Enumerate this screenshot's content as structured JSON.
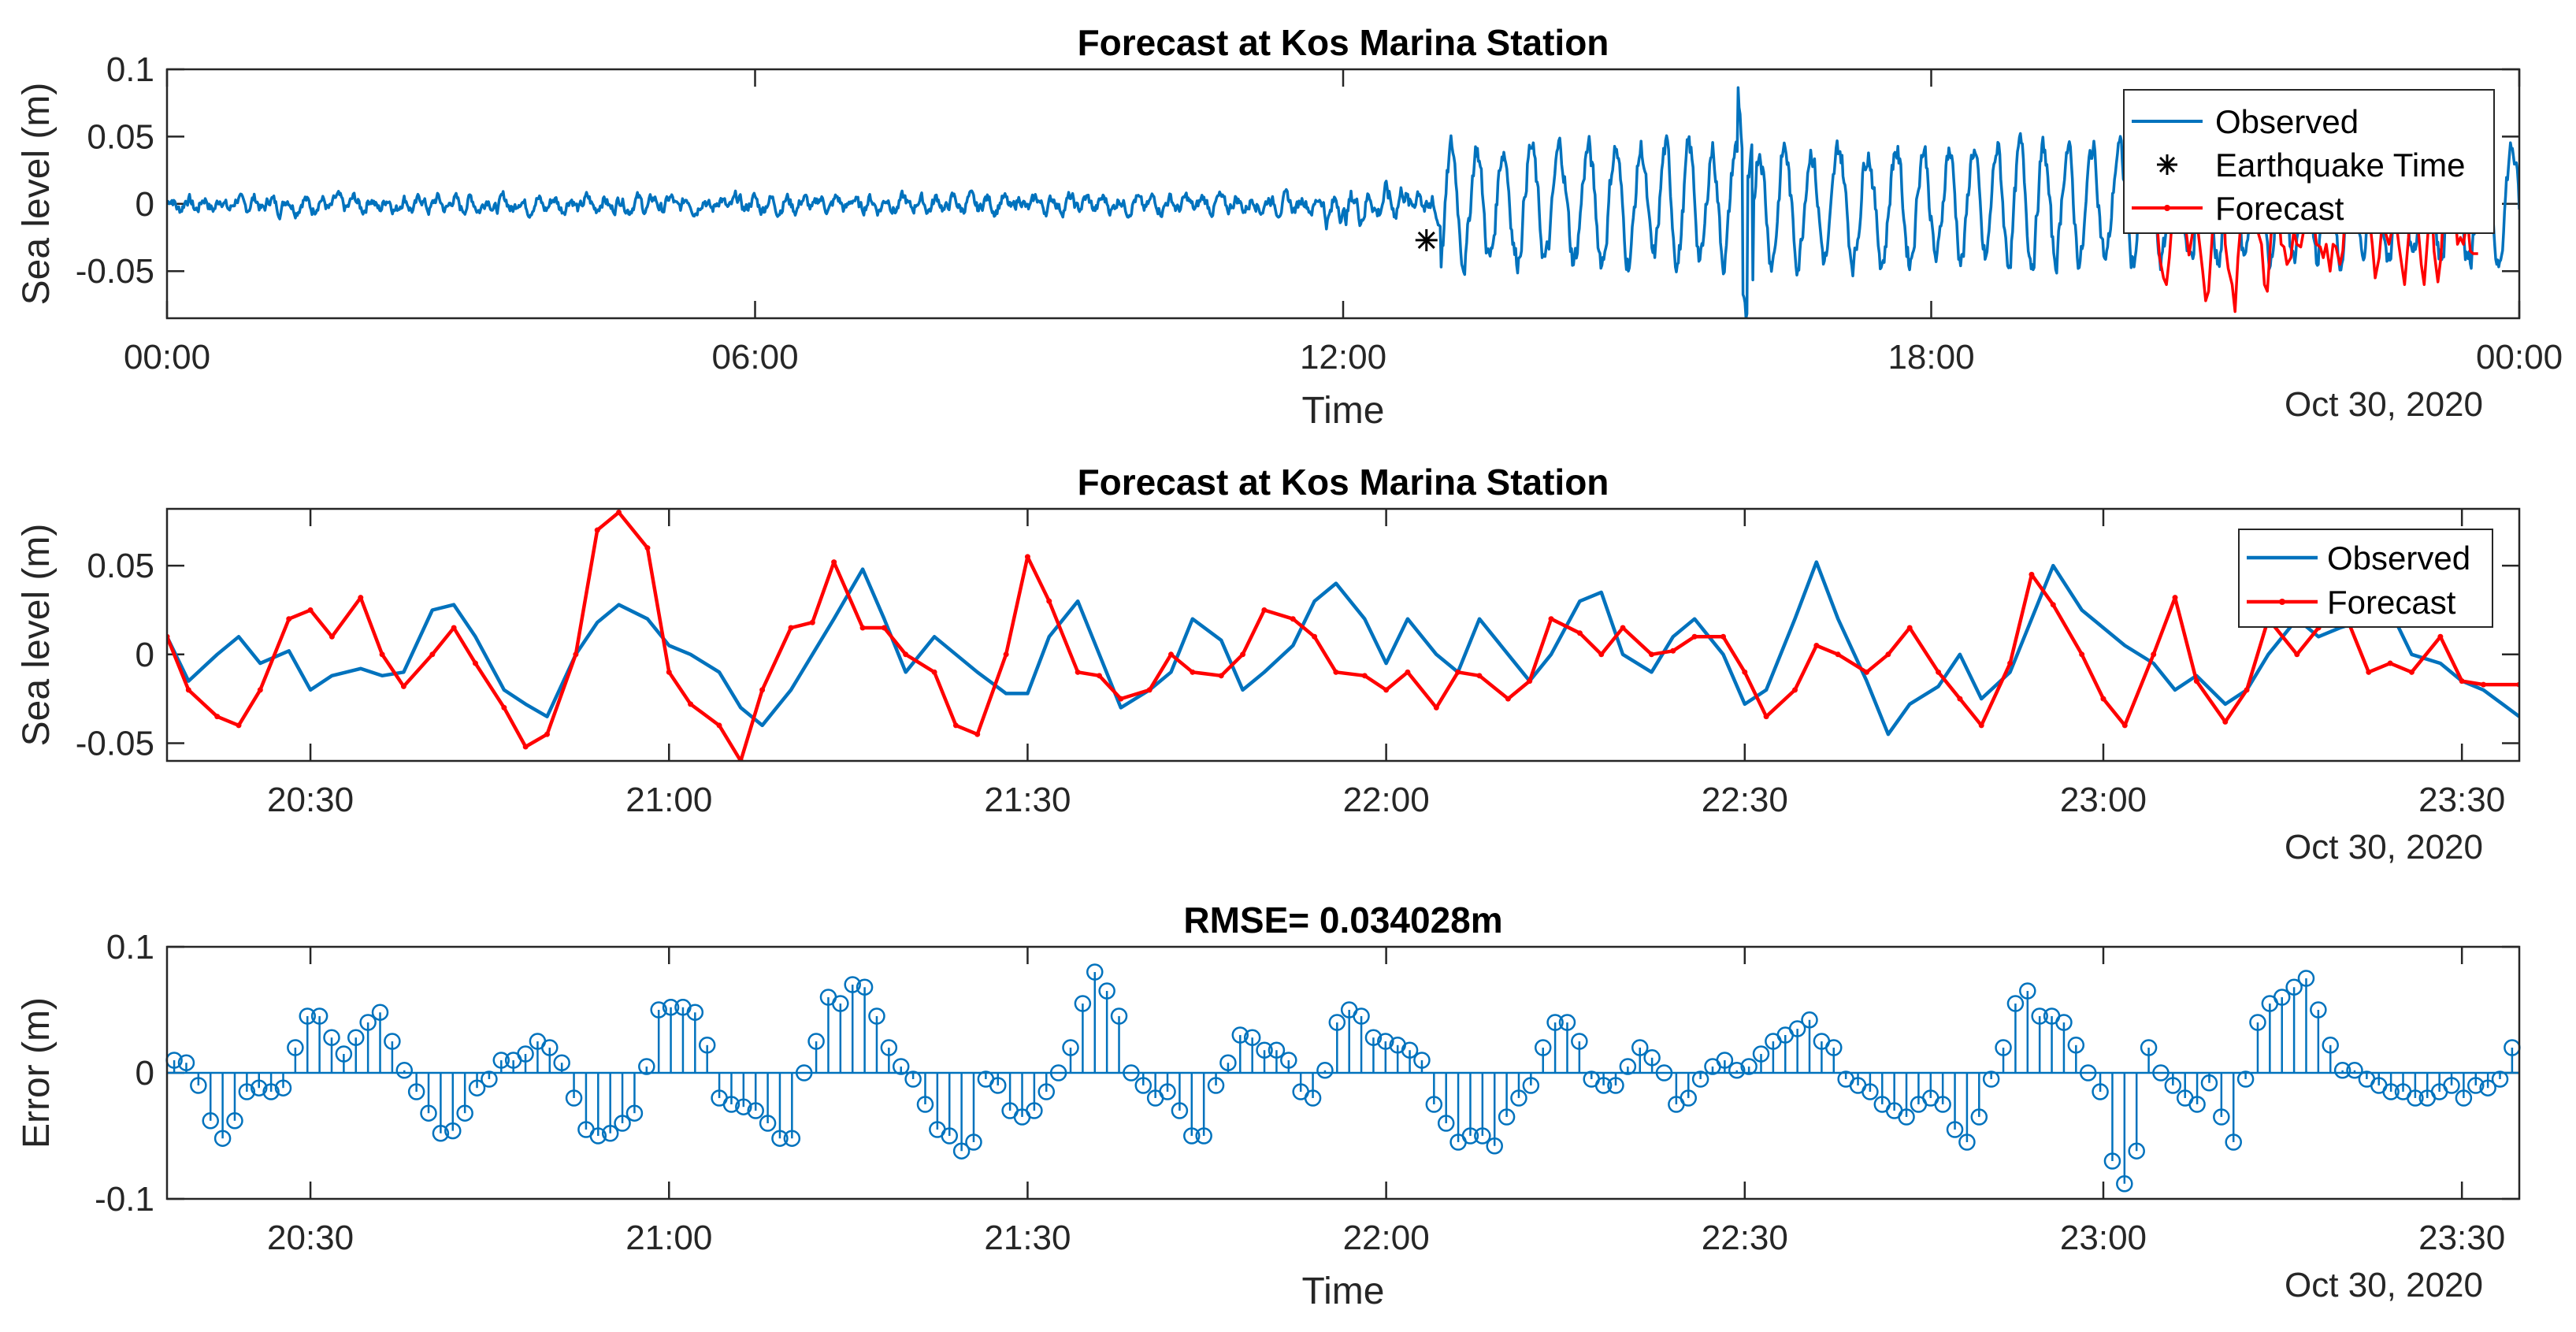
{
  "chart_data": [
    {
      "type": "line",
      "title": "Forecast at Kos Marina Station",
      "xlabel": "Time",
      "ylabel": "Sea level (m)",
      "date_label": "Oct 30, 2020",
      "xlim_hours": [
        0,
        24
      ],
      "ylim": [
        -0.085,
        0.1
      ],
      "x_ticks": [
        {
          "h": 0,
          "label": "00:00"
        },
        {
          "h": 6,
          "label": "06:00"
        },
        {
          "h": 12,
          "label": "12:00"
        },
        {
          "h": 18,
          "label": "18:00"
        },
        {
          "h": 24,
          "label": "00:00"
        }
      ],
      "y_ticks": [
        {
          "v": 0.1,
          "label": "0.1"
        },
        {
          "v": 0.05,
          "label": "0.05"
        },
        {
          "v": 0,
          "label": "0"
        },
        {
          "v": -0.05,
          "label": "-0.05"
        }
      ],
      "legend": [
        "Observed",
        "Earthquake Time",
        "Forecast"
      ],
      "legend_position": "top-right",
      "earthquake_marker": {
        "h": 12.85,
        "v": -0.027
      },
      "observed_envelope_approx": [
        {
          "h_from": 0,
          "h_to": 11.8,
          "amplitude": 0.012
        },
        {
          "h_from": 11.8,
          "h_to": 13.0,
          "amplitude": 0.02
        },
        {
          "h_from": 13.0,
          "h_to": 24,
          "amplitude": 0.055
        }
      ],
      "forecast_hours_range": [
        20.3,
        23.58
      ],
      "series": [
        {
          "name": "Observed",
          "color": "#0072BD",
          "note": "high-frequency record, approximated"
        },
        {
          "name": "Forecast",
          "color": "#FF0000",
          "note": "covers the final ~3.3 h"
        }
      ]
    },
    {
      "type": "line",
      "title": "Forecast at Kos Marina Station",
      "xlabel": "",
      "ylabel": "Sea level (m)",
      "date_label": "Oct 30, 2020",
      "xlim_hours": [
        20.3,
        23.58
      ],
      "ylim": [
        -0.06,
        0.082
      ],
      "x_ticks": [
        {
          "h": 20.5,
          "label": "20:30"
        },
        {
          "h": 21.0,
          "label": "21:00"
        },
        {
          "h": 21.5,
          "label": "21:30"
        },
        {
          "h": 22.0,
          "label": "22:00"
        },
        {
          "h": 22.5,
          "label": "22:30"
        },
        {
          "h": 23.0,
          "label": "23:00"
        },
        {
          "h": 23.5,
          "label": "23:30"
        }
      ],
      "y_ticks": [
        {
          "v": 0.05,
          "label": "0.05"
        },
        {
          "v": 0,
          "label": "0"
        },
        {
          "v": -0.05,
          "label": "-0.05"
        }
      ],
      "legend": [
        "Observed",
        "Forecast"
      ],
      "legend_position": "top-right",
      "series": [
        {
          "name": "Observed",
          "color": "#0072BD",
          "x_hours": [
            20.3,
            20.33,
            20.37,
            20.4,
            20.43,
            20.47,
            20.5,
            20.53,
            20.57,
            20.6,
            20.63,
            20.67,
            20.7,
            20.73,
            20.77,
            20.8,
            20.83,
            20.87,
            20.9,
            20.93,
            20.97,
            21.0,
            21.03,
            21.07,
            21.1,
            21.13,
            21.17,
            21.2,
            21.23,
            21.27,
            21.3,
            21.33,
            21.37,
            21.4,
            21.43,
            21.47,
            21.5,
            21.53,
            21.57,
            21.6,
            21.63,
            21.67,
            21.7,
            21.73,
            21.77,
            21.8,
            21.83,
            21.87,
            21.9,
            21.93,
            21.97,
            22.0,
            22.03,
            22.07,
            22.1,
            22.13,
            22.17,
            22.2,
            22.23,
            22.27,
            22.3,
            22.33,
            22.37,
            22.4,
            22.43,
            22.47,
            22.5,
            22.53,
            22.57,
            22.6,
            22.63,
            22.67,
            22.7,
            22.73,
            22.77,
            22.8,
            22.83,
            22.87,
            22.9,
            22.93,
            22.97,
            23.0,
            23.03,
            23.07,
            23.1,
            23.13,
            23.17,
            23.2,
            23.23,
            23.27,
            23.3,
            23.33,
            23.37,
            23.4,
            23.43,
            23.47,
            23.5,
            23.53,
            23.58
          ],
          "values": [
            0.01,
            -0.015,
            0.0,
            0.01,
            -0.005,
            0.002,
            -0.02,
            -0.012,
            -0.008,
            -0.012,
            -0.01,
            0.025,
            0.028,
            0.01,
            -0.02,
            -0.028,
            -0.035,
            0.0,
            0.018,
            0.028,
            0.02,
            0.005,
            0.0,
            -0.01,
            -0.03,
            -0.04,
            -0.02,
            0.0,
            0.02,
            0.048,
            0.02,
            -0.01,
            0.01,
            0.0,
            -0.01,
            -0.022,
            -0.022,
            0.01,
            0.03,
            0.0,
            -0.03,
            -0.02,
            -0.01,
            0.02,
            0.008,
            -0.02,
            -0.01,
            0.005,
            0.03,
            0.04,
            0.02,
            -0.005,
            0.02,
            0.0,
            -0.01,
            0.02,
            0.0,
            -0.015,
            0.0,
            0.03,
            0.035,
            0.0,
            -0.01,
            0.01,
            0.02,
            0.0,
            -0.028,
            -0.02,
            0.02,
            0.052,
            0.02,
            -0.015,
            -0.045,
            -0.028,
            -0.018,
            0.0,
            -0.025,
            -0.01,
            0.02,
            0.05,
            0.025,
            0.015,
            0.005,
            -0.005,
            -0.02,
            -0.012,
            -0.028,
            -0.02,
            0.0,
            0.02,
            0.01,
            0.015,
            0.02,
            0.025,
            0.0,
            -0.005,
            -0.015,
            -0.02,
            -0.035
          ]
        },
        {
          "name": "Forecast",
          "color": "#FF0000",
          "x_hours": [
            20.3,
            20.33,
            20.37,
            20.4,
            20.43,
            20.47,
            20.5,
            20.53,
            20.57,
            20.6,
            20.63,
            20.67,
            20.7,
            20.73,
            20.77,
            20.8,
            20.83,
            20.87,
            20.9,
            20.93,
            20.97,
            21.0,
            21.03,
            21.07,
            21.1,
            21.13,
            21.17,
            21.2,
            21.23,
            21.27,
            21.3,
            21.33,
            21.37,
            21.4,
            21.43,
            21.47,
            21.5,
            21.53,
            21.57,
            21.6,
            21.63,
            21.67,
            21.7,
            21.73,
            21.77,
            21.8,
            21.83,
            21.87,
            21.9,
            21.93,
            21.97,
            22.0,
            22.03,
            22.07,
            22.1,
            22.13,
            22.17,
            22.2,
            22.23,
            22.27,
            22.3,
            22.33,
            22.37,
            22.4,
            22.43,
            22.47,
            22.5,
            22.53,
            22.57,
            22.6,
            22.63,
            22.67,
            22.7,
            22.73,
            22.77,
            22.8,
            22.83,
            22.87,
            22.9,
            22.93,
            22.97,
            23.0,
            23.03,
            23.07,
            23.1,
            23.13,
            23.17,
            23.2,
            23.23,
            23.27,
            23.3,
            23.33,
            23.37,
            23.4,
            23.43,
            23.47,
            23.5,
            23.53,
            23.58
          ],
          "values": [
            0.01,
            -0.02,
            -0.035,
            -0.04,
            -0.02,
            0.02,
            0.025,
            0.01,
            0.032,
            0.0,
            -0.018,
            0.0,
            0.015,
            -0.005,
            -0.03,
            -0.052,
            -0.045,
            0.0,
            0.07,
            0.08,
            0.06,
            -0.01,
            -0.028,
            -0.04,
            -0.06,
            -0.02,
            0.015,
            0.018,
            0.052,
            0.015,
            0.015,
            0.0,
            -0.01,
            -0.04,
            -0.045,
            0.0,
            0.055,
            0.03,
            -0.01,
            -0.012,
            -0.025,
            -0.02,
            0.0,
            -0.01,
            -0.012,
            0.0,
            0.025,
            0.02,
            0.01,
            -0.01,
            -0.012,
            -0.02,
            -0.01,
            -0.03,
            -0.01,
            -0.012,
            -0.025,
            -0.015,
            0.02,
            0.012,
            0.0,
            0.015,
            0.0,
            0.002,
            0.01,
            0.01,
            -0.01,
            -0.035,
            -0.02,
            0.005,
            0.0,
            -0.01,
            0.0,
            0.015,
            -0.01,
            -0.025,
            -0.04,
            -0.005,
            0.045,
            0.028,
            0.0,
            -0.025,
            -0.04,
            0.0,
            0.032,
            -0.015,
            -0.038,
            -0.02,
            0.02,
            0.0,
            0.015,
            0.03,
            -0.01,
            -0.005,
            -0.01,
            0.01,
            -0.015,
            -0.017,
            -0.017
          ]
        }
      ]
    },
    {
      "type": "stem",
      "title": "RMSE= 0.034028m",
      "xlabel": "Time",
      "ylabel": "Error (m)",
      "date_label": "Oct 30, 2020",
      "xlim_hours": [
        20.3,
        23.58
      ],
      "ylim": [
        -0.1,
        0.1
      ],
      "x_ticks": [
        {
          "h": 20.5,
          "label": "20:30"
        },
        {
          "h": 21.0,
          "label": "21:00"
        },
        {
          "h": 21.5,
          "label": "21:30"
        },
        {
          "h": 22.0,
          "label": "22:00"
        },
        {
          "h": 22.5,
          "label": "22:30"
        },
        {
          "h": 23.0,
          "label": "23:00"
        },
        {
          "h": 23.5,
          "label": "23:30"
        }
      ],
      "y_ticks": [
        {
          "v": 0.1,
          "label": "0.1"
        },
        {
          "v": 0,
          "label": "0"
        },
        {
          "v": -0.1,
          "label": "-0.1"
        }
      ],
      "series": [
        {
          "name": "Error",
          "color": "#0072BD",
          "values": [
            0.01,
            0.008,
            -0.01,
            -0.038,
            -0.052,
            -0.038,
            -0.015,
            -0.012,
            -0.015,
            -0.012,
            0.02,
            0.045,
            0.045,
            0.028,
            0.015,
            0.028,
            0.04,
            0.048,
            0.025,
            0.002,
            -0.015,
            -0.032,
            -0.048,
            -0.046,
            -0.032,
            -0.012,
            -0.005,
            0.01,
            0.01,
            0.015,
            0.025,
            0.02,
            0.008,
            -0.02,
            -0.045,
            -0.05,
            -0.048,
            -0.04,
            -0.032,
            0.005,
            0.05,
            0.052,
            0.052,
            0.048,
            0.022,
            -0.02,
            -0.025,
            -0.027,
            -0.03,
            -0.04,
            -0.052,
            -0.052,
            0.0,
            0.025,
            0.06,
            0.055,
            0.07,
            0.068,
            0.045,
            0.02,
            0.005,
            -0.005,
            -0.025,
            -0.045,
            -0.05,
            -0.062,
            -0.055,
            -0.005,
            -0.01,
            -0.03,
            -0.035,
            -0.03,
            -0.015,
            0.0,
            0.02,
            0.055,
            0.08,
            0.065,
            0.045,
            0.0,
            -0.01,
            -0.02,
            -0.015,
            -0.03,
            -0.05,
            -0.05,
            -0.01,
            0.008,
            0.03,
            0.028,
            0.018,
            0.018,
            0.01,
            -0.015,
            -0.02,
            0.002,
            0.04,
            0.05,
            0.045,
            0.028,
            0.025,
            0.022,
            0.018,
            0.01,
            -0.025,
            -0.04,
            -0.055,
            -0.05,
            -0.05,
            -0.058,
            -0.035,
            -0.02,
            -0.01,
            0.02,
            0.04,
            0.04,
            0.025,
            -0.005,
            -0.01,
            -0.01,
            0.005,
            0.02,
            0.012,
            0.0,
            -0.025,
            -0.02,
            -0.005,
            0.005,
            0.01,
            0.002,
            0.005,
            0.015,
            0.025,
            0.03,
            0.035,
            0.042,
            0.025,
            0.02,
            -0.005,
            -0.01,
            -0.015,
            -0.025,
            -0.03,
            -0.035,
            -0.025,
            -0.02,
            -0.025,
            -0.045,
            -0.055,
            -0.035,
            -0.005,
            0.02,
            0.055,
            0.065,
            0.045,
            0.045,
            0.04,
            0.022,
            0.0,
            -0.015,
            -0.07,
            -0.088,
            -0.062,
            0.02,
            0.0,
            -0.01,
            -0.02,
            -0.025,
            -0.008,
            -0.035,
            -0.055,
            -0.005,
            0.04,
            0.055,
            0.06,
            0.068,
            0.075,
            0.05,
            0.022,
            0.002,
            0.002,
            -0.005,
            -0.01,
            -0.015,
            -0.015,
            -0.02,
            -0.02,
            -0.015,
            -0.01,
            -0.02,
            -0.01,
            -0.012,
            -0.005,
            0.02
          ]
        }
      ]
    }
  ]
}
